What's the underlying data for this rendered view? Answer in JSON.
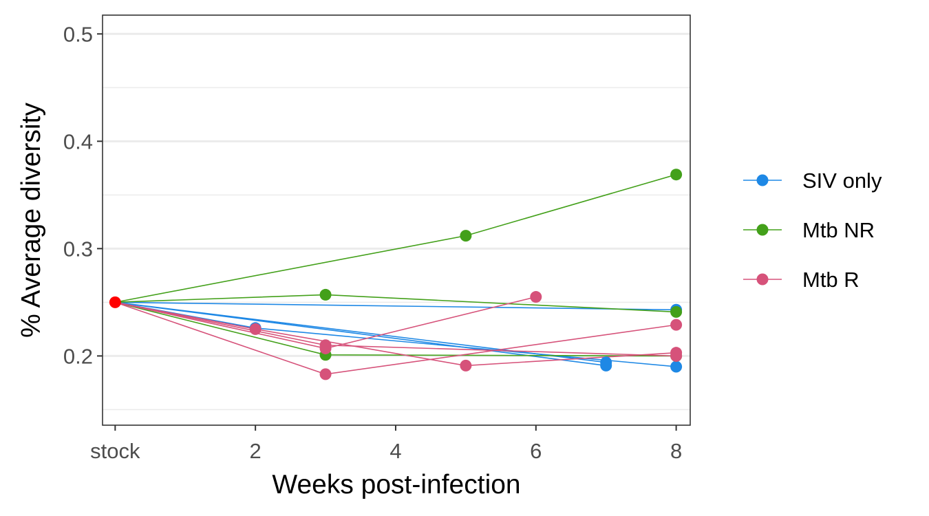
{
  "chart_data": {
    "type": "line",
    "title": "",
    "xlabel": "Weeks post-infection",
    "ylabel": "% Average diversity",
    "xlim": [
      -0.18,
      8.2
    ],
    "ylim": [
      0.1355,
      0.5175
    ],
    "x_ticks": [
      {
        "value": 0,
        "label": "stock"
      },
      {
        "value": 2,
        "label": "2"
      },
      {
        "value": 4,
        "label": "4"
      },
      {
        "value": 6,
        "label": "6"
      },
      {
        "value": 8,
        "label": "8"
      }
    ],
    "y_ticks": [
      {
        "value": 0.2,
        "label": "0.2"
      },
      {
        "value": 0.3,
        "label": "0.3"
      },
      {
        "value": 0.4,
        "label": "0.4"
      },
      {
        "value": 0.5,
        "label": "0.5"
      }
    ],
    "y_minor_grid": [
      0.15,
      0.25,
      0.35,
      0.45
    ],
    "grid": "horizontal",
    "legend_position": "right",
    "stock_point": {
      "x": 0,
      "y": 0.25,
      "color": "#FF0000"
    },
    "groups": [
      {
        "name": "SIV only",
        "color": "#1E88E5"
      },
      {
        "name": "Mtb NR",
        "color": "#43A01A"
      },
      {
        "name": "Mtb R",
        "color": "#D6527A"
      }
    ],
    "series": [
      {
        "group": 0,
        "x": [
          0,
          8
        ],
        "y": [
          0.25,
          0.243
        ]
      },
      {
        "group": 0,
        "x": [
          0,
          2,
          8
        ],
        "y": [
          0.25,
          0.226,
          0.19
        ]
      },
      {
        "group": 0,
        "x": [
          0,
          7
        ],
        "y": [
          0.25,
          0.191
        ]
      },
      {
        "group": 0,
        "x": [
          0,
          7
        ],
        "y": [
          0.25,
          0.194
        ]
      },
      {
        "group": 1,
        "x": [
          0,
          5,
          8
        ],
        "y": [
          0.25,
          0.312,
          0.369
        ]
      },
      {
        "group": 1,
        "x": [
          0,
          3,
          8
        ],
        "y": [
          0.25,
          0.257,
          0.241
        ]
      },
      {
        "group": 1,
        "x": [
          0,
          3,
          8
        ],
        "y": [
          0.25,
          0.201,
          0.2
        ]
      },
      {
        "group": 2,
        "x": [
          0,
          3,
          6
        ],
        "y": [
          0.25,
          0.207,
          0.255
        ]
      },
      {
        "group": 2,
        "x": [
          0,
          2,
          5,
          8
        ],
        "y": [
          0.25,
          0.225,
          0.191,
          0.203
        ]
      },
      {
        "group": 2,
        "x": [
          0,
          3,
          8
        ],
        "y": [
          0.25,
          0.21,
          0.2
        ]
      },
      {
        "group": 2,
        "x": [
          0,
          3,
          8
        ],
        "y": [
          0.25,
          0.183,
          0.229
        ]
      }
    ]
  }
}
